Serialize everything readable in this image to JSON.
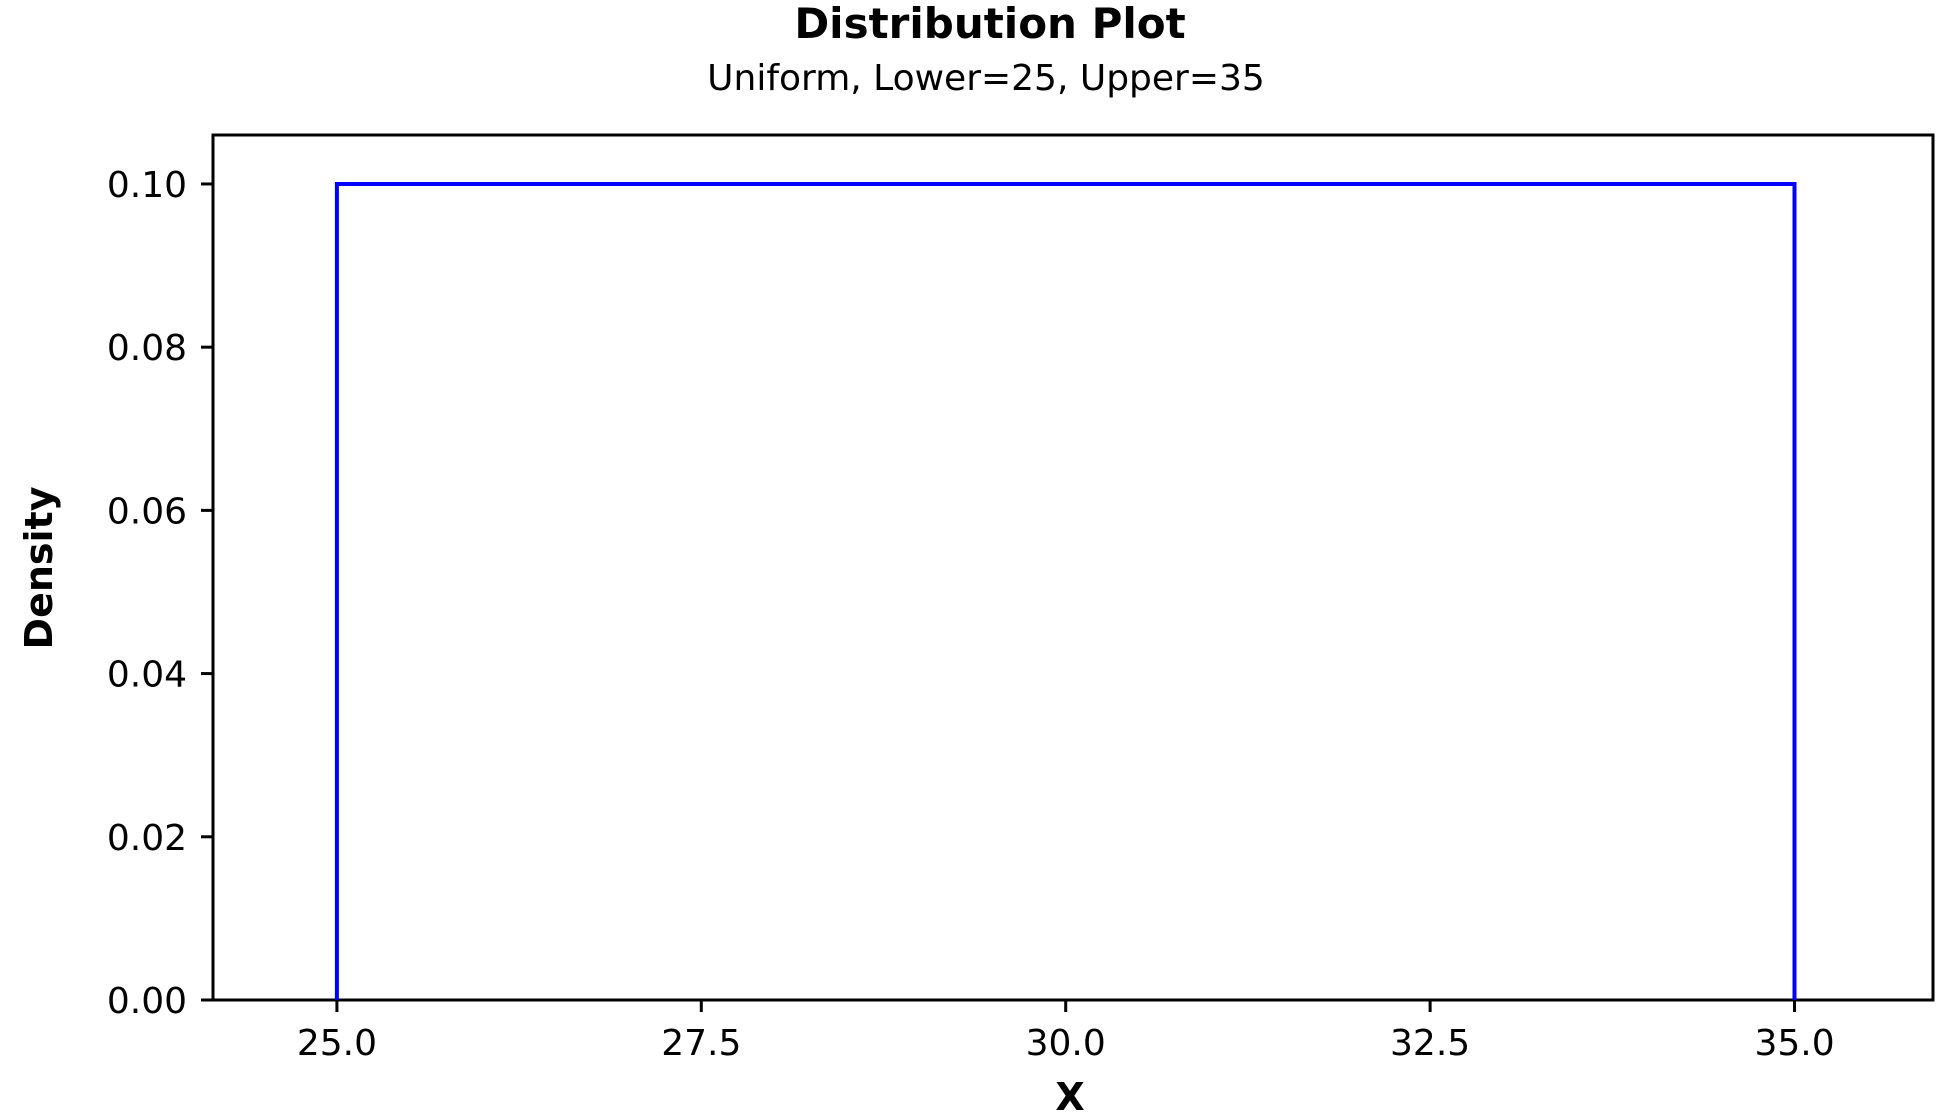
{
  "chart_data": {
    "type": "line",
    "title": "Distribution Plot",
    "subtitle": "Uniform, Lower=25, Upper=35",
    "xlabel": "X",
    "ylabel": "Density",
    "xlim": [
      24.15,
      35.95
    ],
    "ylim": [
      0,
      0.106
    ],
    "x_ticks": [
      25.0,
      27.5,
      30.0,
      32.5,
      35.0
    ],
    "x_tick_labels": [
      "25.0",
      "27.5",
      "30.0",
      "32.5",
      "35.0"
    ],
    "y_ticks": [
      0.0,
      0.02,
      0.04,
      0.06,
      0.08,
      0.1
    ],
    "y_tick_labels": [
      "0.00",
      "0.02",
      "0.04",
      "0.06",
      "0.08",
      "0.10"
    ],
    "grid": false,
    "series": [
      {
        "color": "#0000ff",
        "x": [
          25,
          25,
          35,
          35
        ],
        "y": [
          0,
          0.1,
          0.1,
          0
        ]
      }
    ]
  }
}
